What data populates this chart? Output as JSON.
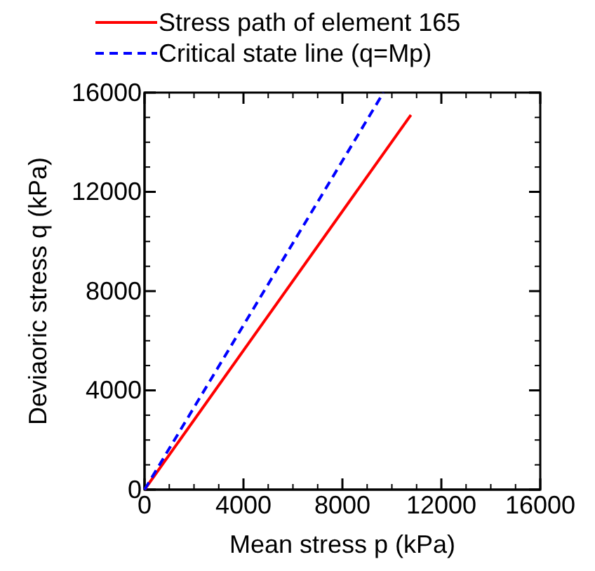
{
  "chart_data": {
    "type": "line",
    "xlabel": "Mean stress p (kPa)",
    "ylabel": "Deviaoric stress q (kPa)",
    "xlim": [
      0,
      16000
    ],
    "ylim": [
      0,
      16000
    ],
    "xticks": [
      0,
      4000,
      8000,
      12000,
      16000
    ],
    "yticks": [
      0,
      4000,
      8000,
      12000,
      16000
    ],
    "grid": false,
    "legend": "top",
    "series": [
      {
        "name": "Stress path of element 165",
        "color": "#ff0000",
        "x": [
          0,
          10770
        ],
        "values": [
          0,
          15100
        ],
        "line_style": "solid"
      },
      {
        "name": "Critical state line (q=Mp)",
        "color": "#0000ff",
        "x": [
          0,
          9660
        ],
        "values": [
          0,
          16000
        ],
        "line_style": "dashed"
      }
    ]
  }
}
